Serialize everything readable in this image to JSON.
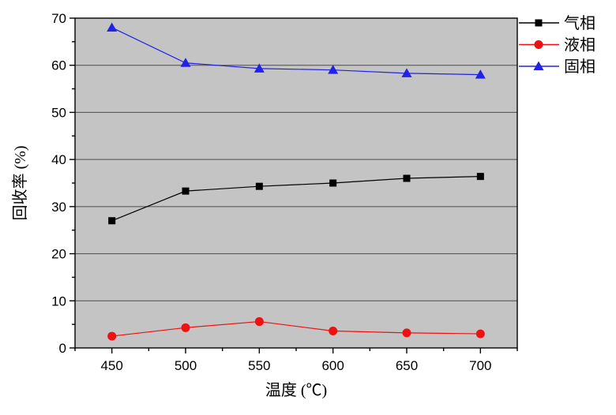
{
  "chart_data": {
    "type": "line",
    "title": "",
    "xlabel": "温度 (℃)",
    "ylabel": "回收率 (%)",
    "x": [
      450,
      500,
      550,
      600,
      650,
      700
    ],
    "series": [
      {
        "id": "gas-phase",
        "name": "气相",
        "marker": "square",
        "color": "#000000",
        "values": [
          27.0,
          33.3,
          34.3,
          35.0,
          36.0,
          36.4
        ]
      },
      {
        "id": "liquid-phase",
        "name": "液相",
        "marker": "circle",
        "color": "#ee1111",
        "values": [
          2.5,
          4.3,
          5.6,
          3.6,
          3.2,
          3.0
        ]
      },
      {
        "id": "solid-phase",
        "name": "固相",
        "marker": "triangle",
        "color": "#2222e6",
        "values": [
          68.0,
          60.5,
          59.3,
          59.0,
          58.3,
          58.0
        ]
      }
    ],
    "xlim": [
      425,
      725
    ],
    "ylim": [
      0,
      70
    ],
    "x_major_ticks": [
      450,
      500,
      550,
      600,
      650,
      700
    ],
    "x_minor_step": 25,
    "y_major_step": 10,
    "y_minor_step": 5,
    "grid": "horizontal-major",
    "legend_position": "outside-top-right"
  },
  "style": {
    "plot_bg": "#c4c4c4",
    "grid_color": "#4d4d4d",
    "axis_color": "#000000",
    "page_bg": "#ffffff"
  }
}
